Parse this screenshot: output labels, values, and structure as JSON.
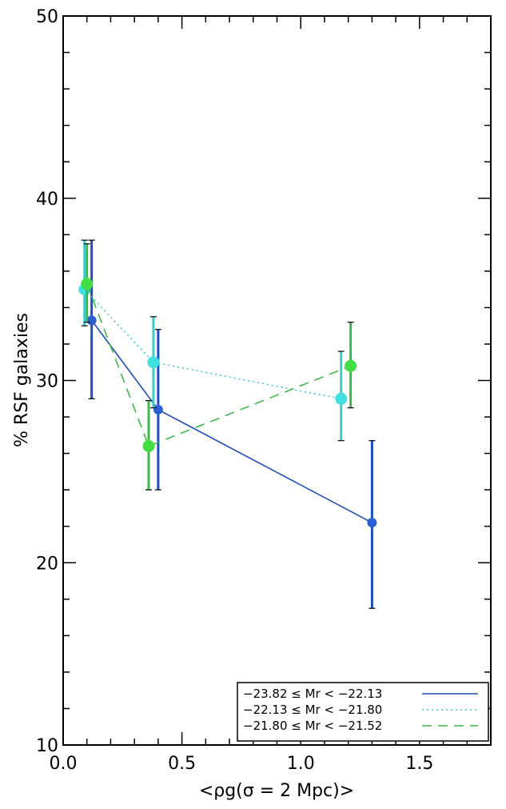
{
  "chart_data": {
    "type": "line",
    "xlabel": "<ρg(σ = 2 Mpc)>",
    "ylabel": "% RSF galaxies",
    "xlim": [
      0.0,
      1.8
    ],
    "ylim": [
      10,
      50
    ],
    "xticks": [
      {
        "value": 0.0,
        "label": "0.0"
      },
      {
        "value": 0.5,
        "label": "0.5"
      },
      {
        "value": 1.0,
        "label": "1.0"
      },
      {
        "value": 1.5,
        "label": "1.5"
      }
    ],
    "yticks": [
      {
        "value": 10,
        "label": "10"
      },
      {
        "value": 20,
        "label": "20"
      },
      {
        "value": 30,
        "label": "30"
      },
      {
        "value": 40,
        "label": "40"
      },
      {
        "value": 50,
        "label": "50"
      }
    ],
    "legend_position": "bottom-right",
    "series": [
      {
        "name": "−23.82 ≤ Mr < −22.13",
        "color": "#1f4fb8",
        "dash": "solid",
        "marker_color": "#2a5fd6",
        "x": [
          0.12,
          0.4,
          1.3
        ],
        "y": [
          33.3,
          28.4,
          22.2
        ],
        "yerr_low": [
          29.0,
          24.0,
          17.5
        ],
        "yerr_high": [
          37.7,
          32.8,
          26.7
        ]
      },
      {
        "name": "−22.13 ≤ Mr < −21.80",
        "color": "#3ec9c9",
        "dash": "dotted",
        "marker_color": "#40e0e0",
        "x": [
          0.09,
          0.38,
          1.17
        ],
        "y": [
          35.0,
          31.0,
          29.0
        ],
        "yerr_low": [
          33.0,
          28.5,
          26.7
        ],
        "yerr_high": [
          37.7,
          33.5,
          31.6
        ]
      },
      {
        "name": "−21.80 ≤ Mr < −21.52",
        "color": "#3cb84a",
        "dash": "dashed",
        "marker_color": "#44dd44",
        "x": [
          0.1,
          0.36,
          1.21
        ],
        "y": [
          35.3,
          26.4,
          30.8
        ],
        "yerr_low": [
          33.2,
          24.0,
          28.5
        ],
        "yerr_high": [
          37.5,
          28.9,
          33.2
        ]
      }
    ]
  }
}
